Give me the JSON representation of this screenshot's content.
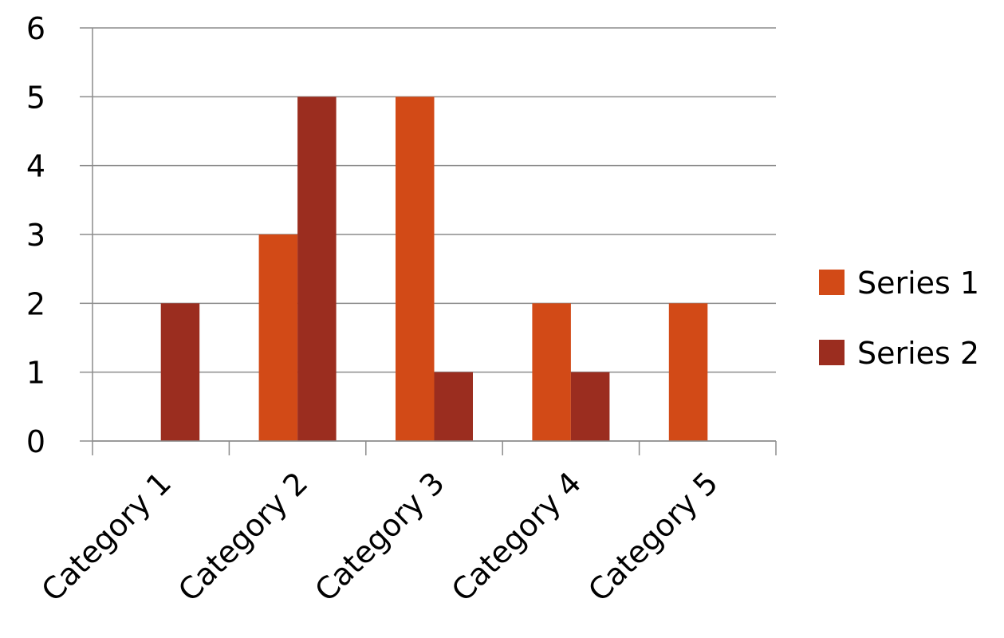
{
  "chart_data": {
    "type": "bar",
    "categories": [
      "Category 1",
      "Category 2",
      "Category 3",
      "Category 4",
      "Category 5"
    ],
    "series": [
      {
        "name": "Series 1",
        "values": [
          0,
          3,
          5,
          2,
          2
        ],
        "color": "#D24A17"
      },
      {
        "name": "Series 2",
        "values": [
          2,
          5,
          1,
          1,
          0
        ],
        "color": "#9B2D1F"
      }
    ],
    "title": "",
    "xlabel": "",
    "ylabel": "",
    "ylim": [
      0,
      6
    ],
    "yticks": [
      "0",
      "1",
      "2",
      "3",
      "4",
      "5",
      "6"
    ],
    "grid": true,
    "legend_position": "right",
    "colors": {
      "gridline": "#8C8C8C",
      "axis": "#8C8C8C"
    }
  }
}
